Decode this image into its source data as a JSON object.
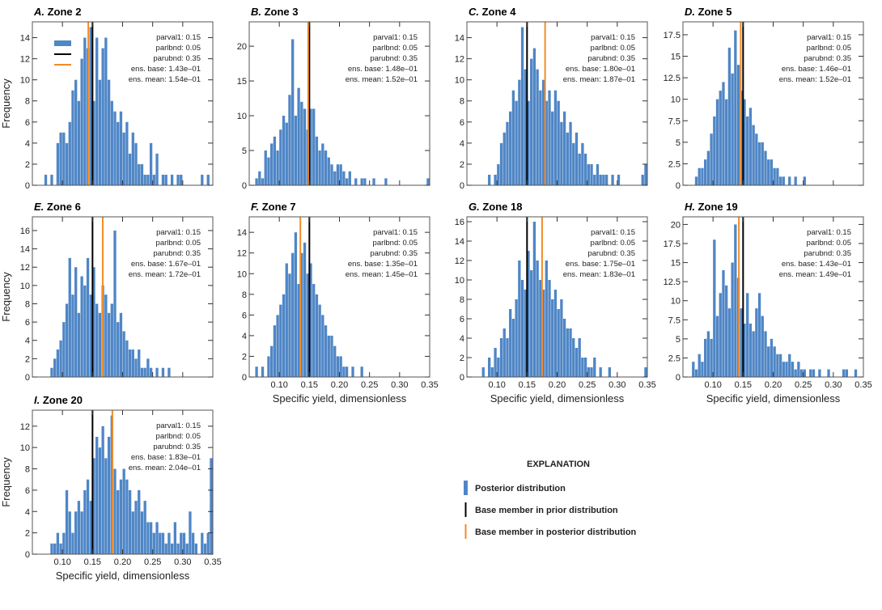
{
  "colors": {
    "bars": "#4f86c6",
    "prior_line": "#000000",
    "posterior_line": "#f28c28"
  },
  "explanation": {
    "title": "EXPLANATION",
    "items": [
      {
        "label": "Posterior distribution",
        "type": "bar",
        "color": "#4f86c6"
      },
      {
        "label": "Base member in prior distribution",
        "type": "line",
        "color": "#000000"
      },
      {
        "label": "Base member in posterior distribution",
        "type": "line",
        "color": "#f28c28"
      }
    ]
  },
  "chart_data": [
    {
      "type": "bar",
      "letter": "A.",
      "title": "Zone 2",
      "ylabel": "Frequency",
      "xlabel": "",
      "xlim": [
        0.05,
        0.35
      ],
      "ylim": [
        0,
        15.5
      ],
      "yticks": [
        0,
        2,
        4,
        6,
        8,
        10,
        12,
        14
      ],
      "xticks": [],
      "prior_line": 0.15,
      "posterior_line": 0.143,
      "legend_inset": true,
      "annotations": [
        "parval1: 0.15",
        "parlbnd: 0.05",
        "parubnd: 0.35",
        "ens. base: 1.43e‒01",
        "ens. mean: 1.54e‒01"
      ],
      "values": [
        0,
        0,
        0,
        0,
        1,
        0,
        1,
        0,
        4,
        5,
        5,
        4,
        6,
        9,
        10,
        8,
        12,
        14,
        13,
        15,
        8,
        14,
        10,
        13,
        14,
        10,
        8,
        7,
        6,
        7,
        5,
        6,
        3,
        5,
        4,
        2,
        2,
        1,
        1,
        4,
        1,
        3,
        0,
        1,
        1,
        0,
        1,
        0,
        1,
        1,
        0,
        0,
        0,
        0,
        0,
        0,
        1,
        0,
        1,
        0
      ]
    },
    {
      "type": "bar",
      "letter": "B.",
      "title": "Zone 3",
      "ylabel": "",
      "xlabel": "",
      "xlim": [
        0.05,
        0.35
      ],
      "ylim": [
        0,
        23.5
      ],
      "yticks": [
        0,
        5,
        10,
        15,
        20
      ],
      "xticks": [],
      "prior_line": 0.15,
      "posterior_line": 0.148,
      "annotations": [
        "parval1: 0.15",
        "parlbnd: 0.05",
        "parubnd: 0.35",
        "ens. base: 1.48e‒01",
        "ens. mean: 1.52e‒01"
      ],
      "values": [
        0,
        0,
        1,
        2,
        1,
        5,
        4,
        6,
        7,
        5,
        8,
        10,
        9,
        13,
        21,
        10,
        14,
        12,
        11,
        8,
        11,
        11,
        7,
        5,
        6,
        5,
        4,
        3,
        2,
        3,
        3,
        2,
        1,
        2,
        0,
        1,
        0,
        1,
        1,
        0,
        0,
        1,
        0,
        0,
        0,
        1,
        0,
        0,
        0,
        0,
        0,
        0,
        0,
        0,
        0,
        0,
        0,
        0,
        0,
        1
      ]
    },
    {
      "type": "bar",
      "letter": "C.",
      "title": "Zone 4",
      "ylabel": "",
      "xlabel": "",
      "xlim": [
        0.05,
        0.35
      ],
      "ylim": [
        0,
        15.5
      ],
      "yticks": [
        0,
        2,
        4,
        6,
        8,
        10,
        12,
        14
      ],
      "xticks": [],
      "prior_line": 0.15,
      "posterior_line": 0.18,
      "annotations": [
        "parval1: 0.15",
        "parlbnd: 0.05",
        "parubnd: 0.35",
        "ens. base: 1.80e‒01",
        "ens. mean: 1.87e‒01"
      ],
      "values": [
        0,
        0,
        0,
        0,
        0,
        0,
        0,
        1,
        0,
        1,
        2,
        4,
        5,
        6,
        7,
        9,
        8,
        10,
        15,
        11,
        8,
        12,
        13,
        11,
        9,
        10,
        8,
        9,
        7,
        9,
        8,
        6,
        7,
        5,
        6,
        4,
        5,
        3,
        4,
        3,
        2,
        2,
        1,
        2,
        1,
        1,
        1,
        0,
        1,
        0,
        1,
        0,
        0,
        0,
        0,
        0,
        0,
        0,
        1,
        2
      ]
    },
    {
      "type": "bar",
      "letter": "D.",
      "title": "Zone 5",
      "ylabel": "",
      "xlabel": "",
      "xlim": [
        0.05,
        0.35
      ],
      "ylim": [
        0,
        19
      ],
      "yticks": [
        0,
        2.5,
        5.0,
        7.5,
        10.0,
        12.5,
        15.0,
        17.5
      ],
      "xticks": [],
      "prior_line": 0.15,
      "posterior_line": 0.146,
      "annotations": [
        "parval1: 0.15",
        "parlbnd: 0.05",
        "parubnd: 0.35",
        "ens. base: 1.46e‒01",
        "ens. mean: 1.52e‒01"
      ],
      "values": [
        0,
        0,
        0,
        0,
        1,
        2,
        2,
        3,
        4,
        6,
        8,
        10,
        11,
        12,
        10,
        16,
        13,
        18,
        14,
        11,
        10,
        8,
        9,
        7,
        6,
        5,
        5,
        4,
        3,
        3,
        2,
        2,
        1,
        1,
        0,
        1,
        0,
        1,
        0,
        0,
        1,
        0,
        0,
        0,
        0,
        0,
        0,
        0,
        0,
        0,
        0,
        0,
        0,
        0,
        0,
        0,
        0,
        0,
        0,
        0
      ]
    },
    {
      "type": "bar",
      "letter": "E.",
      "title": "Zone 6",
      "ylabel": "Frequency",
      "xlabel": "",
      "xlim": [
        0.05,
        0.35
      ],
      "ylim": [
        0,
        17.5
      ],
      "yticks": [
        0,
        2,
        4,
        6,
        8,
        10,
        12,
        14,
        16
      ],
      "xticks": [],
      "prior_line": 0.15,
      "posterior_line": 0.167,
      "annotations": [
        "parval1: 0.15",
        "parlbnd: 0.05",
        "parubnd: 0.35",
        "ens. base: 1.67e‒01",
        "ens. mean: 1.72e‒01"
      ],
      "values": [
        0,
        0,
        0,
        0,
        0,
        0,
        1,
        2,
        3,
        4,
        6,
        8,
        13,
        9,
        12,
        7,
        11,
        10,
        13,
        9,
        12,
        8,
        7,
        10,
        9,
        7,
        8,
        16,
        6,
        7,
        5,
        4,
        3,
        3,
        2,
        3,
        1,
        1,
        2,
        1,
        0,
        1,
        0,
        1,
        0,
        1,
        0,
        0,
        0,
        0,
        0,
        0,
        0,
        0,
        0,
        0,
        0,
        0,
        0,
        0
      ]
    },
    {
      "type": "bar",
      "letter": "F.",
      "title": "Zone 7",
      "ylabel": "",
      "xlabel": "Specific yield, dimensionless",
      "xlim": [
        0.05,
        0.35
      ],
      "ylim": [
        0,
        15.5
      ],
      "yticks": [
        0,
        2,
        4,
        6,
        8,
        10,
        12,
        14
      ],
      "xticks": [
        "0.10",
        "0.15",
        "0.20",
        "0.25",
        "0.30",
        "0.35"
      ],
      "prior_line": 0.15,
      "posterior_line": 0.135,
      "annotations": [
        "parval1: 0.15",
        "parlbnd: 0.05",
        "parubnd: 0.35",
        "ens. base: 1.35e‒01",
        "ens. mean: 1.45e‒01"
      ],
      "values": [
        0,
        0,
        1,
        0,
        1,
        0,
        2,
        3,
        5,
        6,
        7,
        8,
        11,
        10,
        12,
        14,
        9,
        12,
        13,
        10,
        11,
        9,
        8,
        7,
        6,
        5,
        4,
        4,
        3,
        2,
        2,
        1,
        1,
        0,
        1,
        0,
        0,
        1,
        0,
        0,
        0,
        0,
        0,
        0,
        0,
        0,
        0,
        0,
        0,
        0,
        0,
        0,
        0,
        0,
        0,
        0,
        0,
        0,
        0,
        0
      ]
    },
    {
      "type": "bar",
      "letter": "G.",
      "title": "Zone 18",
      "ylabel": "",
      "xlabel": "Specific yield, dimensionless",
      "xlim": [
        0.05,
        0.35
      ],
      "ylim": [
        0,
        16.5
      ],
      "yticks": [
        0,
        2,
        4,
        6,
        8,
        10,
        12,
        14,
        16
      ],
      "xticks": [
        "0.10",
        "0.15",
        "0.20",
        "0.25",
        "0.30",
        "0.35"
      ],
      "prior_line": 0.15,
      "posterior_line": 0.175,
      "annotations": [
        "parval1: 0.15",
        "parlbnd: 0.05",
        "parubnd: 0.35",
        "ens. base: 1.75e‒01",
        "ens. mean: 1.83e‒01"
      ],
      "values": [
        0,
        0,
        0,
        0,
        0,
        1,
        0,
        2,
        1,
        3,
        2,
        4,
        5,
        4,
        7,
        6,
        8,
        12,
        10,
        9,
        13,
        11,
        16,
        12,
        10,
        9,
        12,
        10,
        8,
        9,
        7,
        8,
        6,
        5,
        5,
        4,
        3,
        4,
        2,
        2,
        1,
        1,
        2,
        0,
        1,
        0,
        0,
        1,
        0,
        0,
        0,
        0,
        0,
        0,
        0,
        0,
        0,
        0,
        0,
        1
      ]
    },
    {
      "type": "bar",
      "letter": "H.",
      "title": "Zone 19",
      "ylabel": "",
      "xlabel": "Specific yield, dimensionless",
      "xlim": [
        0.05,
        0.35
      ],
      "ylim": [
        0,
        21
      ],
      "yticks": [
        0,
        2.5,
        5.0,
        7.5,
        10.0,
        12.5,
        15.0,
        17.5,
        20.0
      ],
      "xticks": [
        "0.10",
        "0.15",
        "0.20",
        "0.25",
        "0.30",
        "0.35"
      ],
      "prior_line": 0.15,
      "posterior_line": 0.143,
      "annotations": [
        "parval1: 0.15",
        "parlbnd: 0.05",
        "parubnd: 0.35",
        "ens. base: 1.43e‒01",
        "ens. mean: 1.49e‒01"
      ],
      "values": [
        0,
        0,
        0,
        2,
        1,
        3,
        2,
        5,
        6,
        5,
        18,
        8,
        11,
        14,
        12,
        9,
        15,
        20,
        13,
        9,
        7,
        11,
        7,
        6,
        9,
        11,
        8,
        6,
        4,
        5,
        4,
        3,
        3,
        2,
        2,
        3,
        2,
        1,
        2,
        1,
        1,
        0,
        1,
        1,
        0,
        1,
        0,
        0,
        1,
        0,
        0,
        0,
        0,
        1,
        1,
        0,
        0,
        1,
        0,
        0
      ]
    },
    {
      "type": "bar",
      "letter": "I.",
      "title": "Zone 20",
      "ylabel": "Frequency",
      "xlabel": "Specific yield, dimensionless",
      "xlim": [
        0.05,
        0.35
      ],
      "ylim": [
        0,
        13.5
      ],
      "yticks": [
        0,
        2,
        4,
        6,
        8,
        10,
        12
      ],
      "xticks": [
        "0.10",
        "0.15",
        "0.20",
        "0.25",
        "0.30",
        "0.35"
      ],
      "prior_line": 0.15,
      "posterior_line": 0.183,
      "annotations": [
        "parval1: 0.15",
        "parlbnd: 0.05",
        "parubnd: 0.35",
        "ens. base: 1.83e‒01",
        "ens. mean: 2.04e‒01"
      ],
      "values": [
        0,
        0,
        0,
        0,
        0,
        0,
        1,
        1,
        2,
        1,
        2,
        6,
        4,
        2,
        4,
        5,
        4,
        6,
        7,
        5,
        9,
        11,
        10,
        12,
        9,
        11,
        13,
        8,
        6,
        7,
        8,
        7,
        6,
        4,
        5,
        6,
        4,
        5,
        3,
        3,
        2,
        3,
        2,
        2,
        1,
        2,
        1,
        3,
        1,
        2,
        2,
        1,
        4,
        2,
        1,
        0,
        2,
        1,
        2,
        9
      ]
    }
  ]
}
